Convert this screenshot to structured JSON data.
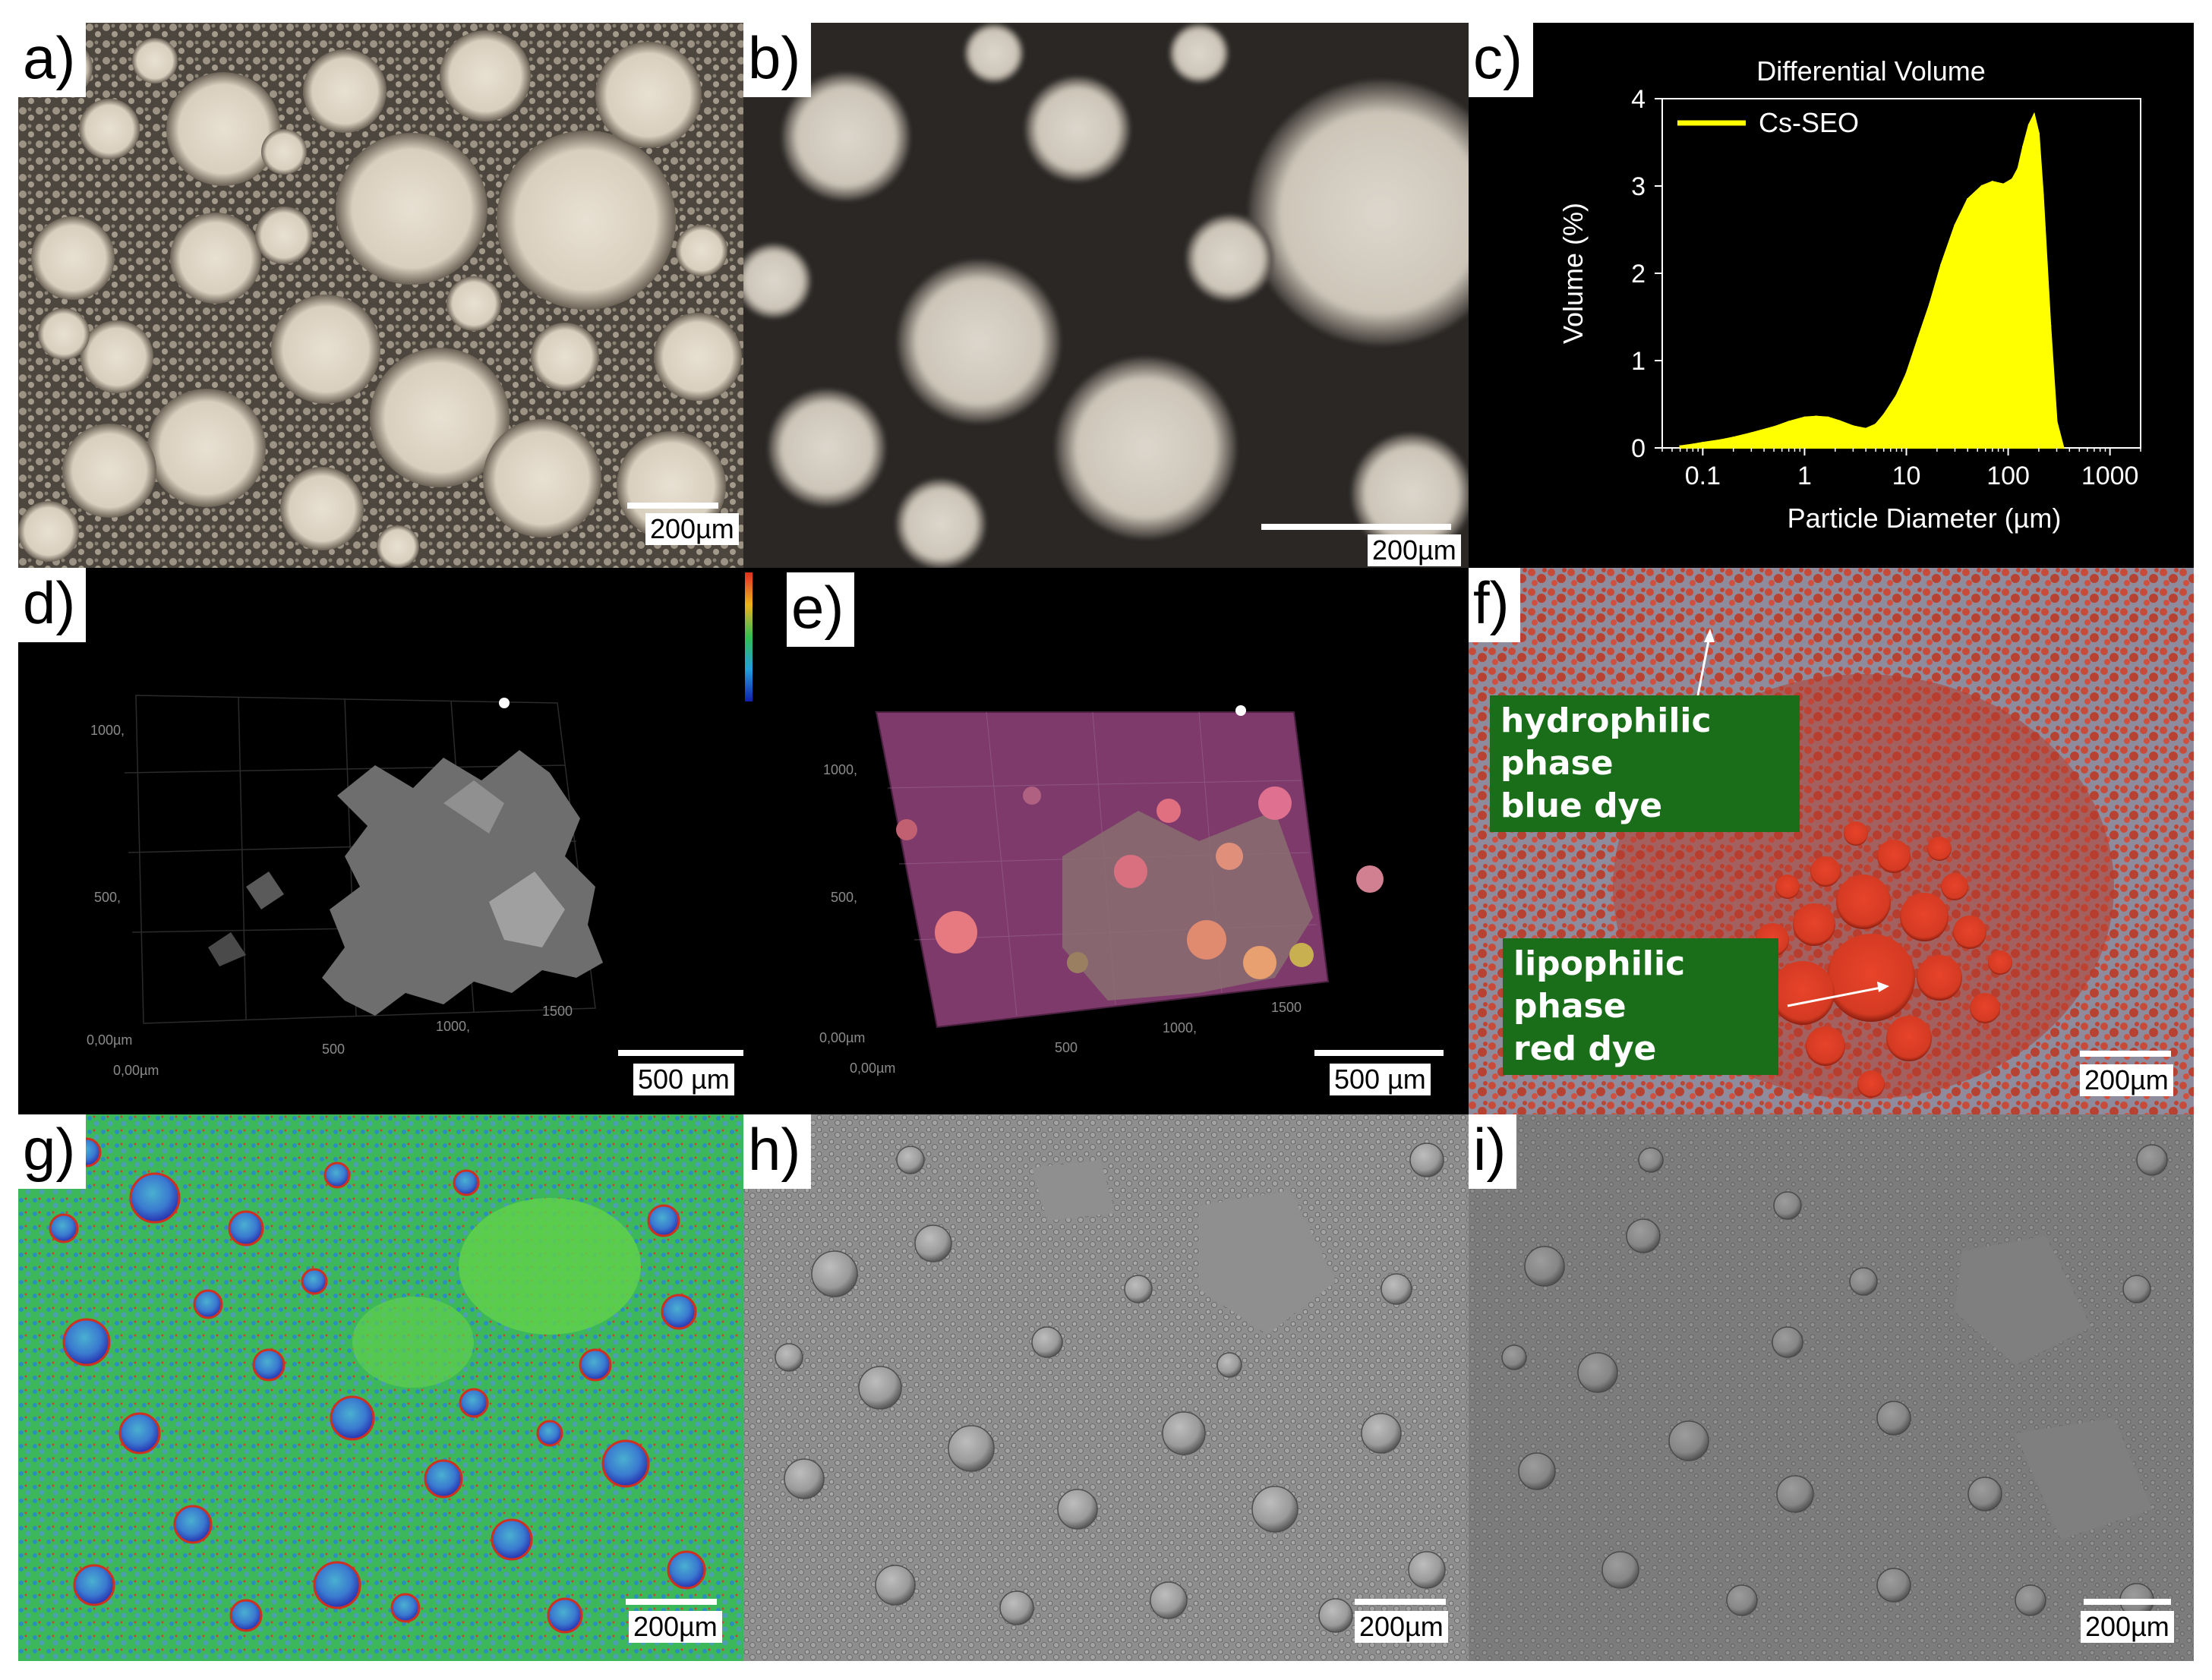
{
  "panels": {
    "a": {
      "label": "a)",
      "scale": "200µm"
    },
    "b": {
      "label": "b)",
      "scale": "200µm"
    },
    "c": {
      "label": "c)"
    },
    "d": {
      "label": "d)",
      "scale": "500 µm",
      "axis_labels": [
        "1000,",
        "500,",
        "0,00µm",
        "0,00µm",
        "500",
        "1000,",
        "1500"
      ]
    },
    "e": {
      "label": "e)",
      "scale": "500 µm",
      "axis_labels": [
        "1000,",
        "500,",
        "0,00µm",
        "0,00µm",
        "500",
        "1000,",
        "1500"
      ]
    },
    "f": {
      "label": "f)",
      "scale": "200µm",
      "annotation_top_line1": "hydrophilic phase",
      "annotation_top_line2": "blue dye",
      "annotation_bottom_line1": "lipophilic phase",
      "annotation_bottom_line2": "red dye"
    },
    "g": {
      "label": "g)",
      "scale": "200µm"
    },
    "h": {
      "label": "h)",
      "scale": "200µm"
    },
    "i": {
      "label": "i)",
      "scale": "200µm"
    }
  },
  "chart_data": {
    "type": "area",
    "title": "Differential Volume",
    "xlabel": "Particle Diameter (µm)",
    "ylabel": "Volume (%)",
    "xscale": "log",
    "xlim": [
      0.04,
      2000
    ],
    "ylim": [
      0,
      4
    ],
    "xticks": [
      0.1,
      1,
      10,
      100,
      1000
    ],
    "xtick_labels": [
      "0.1",
      "1",
      "10",
      "100",
      "1000"
    ],
    "yticks": [
      0,
      1,
      2,
      3,
      4
    ],
    "ytick_labels": [
      "0",
      "1",
      "2",
      "3",
      "4"
    ],
    "grid": false,
    "legend_position": "top-left",
    "series": [
      {
        "name": "Cs-SEO",
        "color": "#ffff00",
        "x": [
          0.06,
          0.08,
          0.1,
          0.15,
          0.2,
          0.3,
          0.5,
          0.7,
          1.0,
          1.3,
          1.7,
          2.2,
          3.0,
          4.0,
          5.0,
          6.0,
          8.0,
          10,
          13,
          17,
          22,
          30,
          40,
          55,
          70,
          90,
          110,
          125,
          140,
          160,
          180,
          200,
          220,
          260,
          300,
          350
        ],
        "y": [
          0.02,
          0.04,
          0.06,
          0.09,
          0.12,
          0.17,
          0.24,
          0.3,
          0.35,
          0.36,
          0.35,
          0.31,
          0.25,
          0.22,
          0.27,
          0.38,
          0.6,
          0.85,
          1.25,
          1.65,
          2.1,
          2.55,
          2.85,
          3.0,
          3.05,
          3.02,
          3.08,
          3.2,
          3.45,
          3.7,
          3.82,
          3.6,
          2.9,
          1.4,
          0.3,
          0.0
        ]
      }
    ]
  }
}
